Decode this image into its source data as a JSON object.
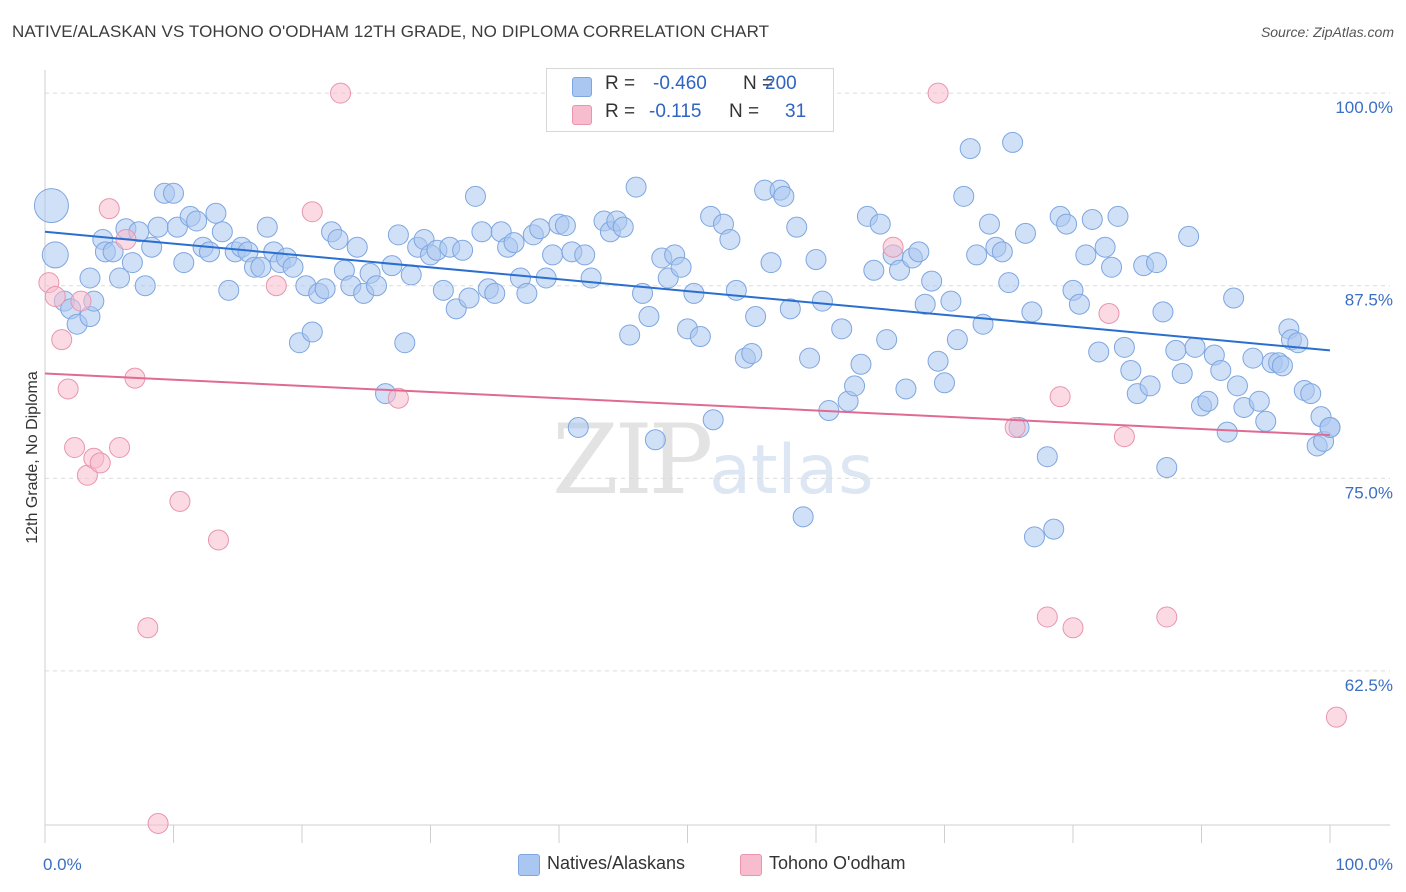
{
  "header": {
    "title": "NATIVE/ALASKAN VS TOHONO O'ODHAM 12TH GRADE, NO DIPLOMA CORRELATION CHART",
    "source": "Source: ZipAtlas.com"
  },
  "legend": {
    "rows": [
      {
        "r_label": "R =",
        "r_value": "-0.460",
        "n_label": "N =",
        "n_value": "200",
        "color": "#aac7f1"
      },
      {
        "r_label": "R =",
        "r_value": "-0.115",
        "n_label": "N =",
        "n_value": "31",
        "color": "#f7bccd"
      }
    ]
  },
  "bottom_legend": [
    {
      "label": "Natives/Alaskans",
      "color": "#aac7f1"
    },
    {
      "label": "Tohono O'odham",
      "color": "#f7bccd"
    }
  ],
  "watermark": {
    "zip": "ZIP",
    "atlas": "atlas"
  },
  "chart_data": {
    "type": "scatter",
    "title": "NATIVE/ALASKAN VS TOHONO O'ODHAM 12TH GRADE, NO DIPLOMA CORRELATION CHART",
    "xlabel": "",
    "ylabel": "12th Grade, No Diploma",
    "xlim": [
      0,
      100
    ],
    "ylim": [
      52.5,
      101.5
    ],
    "x_tick_labels": [
      "0.0%",
      "100.0%"
    ],
    "y_ticks": [
      {
        "value": 100.0,
        "label": "100.0%"
      },
      {
        "value": 87.5,
        "label": "87.5%"
      },
      {
        "value": 75.0,
        "label": "75.0%"
      },
      {
        "value": 62.5,
        "label": "62.5%"
      }
    ],
    "grid": "horizontal dashed",
    "legend_position": "top-center",
    "series": [
      {
        "name": "Natives/Alaskans",
        "color": "#aac7f1",
        "edge_color": "#7ea6e0",
        "trend_color": "#2a6fcf",
        "trend": {
          "x": [
            0,
            100
          ],
          "y": [
            91.0,
            83.3
          ]
        },
        "points": [
          [
            0.5,
            92.7,
            "L"
          ],
          [
            0.8,
            89.5,
            "M"
          ],
          [
            1.5,
            86.5
          ],
          [
            2.0,
            86.0
          ],
          [
            2.5,
            85.0
          ],
          [
            3.5,
            85.5
          ],
          [
            3.5,
            88.0
          ],
          [
            3.8,
            86.5
          ],
          [
            4.5,
            90.5
          ],
          [
            4.7,
            89.7
          ],
          [
            5.3,
            89.7
          ],
          [
            5.8,
            88.0
          ],
          [
            6.3,
            91.2
          ],
          [
            6.8,
            89.0
          ],
          [
            7.3,
            91.0
          ],
          [
            7.8,
            87.5
          ],
          [
            8.3,
            90.0
          ],
          [
            8.8,
            91.3
          ],
          [
            9.3,
            93.5
          ],
          [
            10.0,
            93.5
          ],
          [
            10.3,
            91.3
          ],
          [
            10.8,
            89.0
          ],
          [
            11.3,
            92.0
          ],
          [
            11.8,
            91.7
          ],
          [
            12.3,
            90.0
          ],
          [
            12.8,
            89.7
          ],
          [
            13.3,
            92.2
          ],
          [
            13.8,
            91.0
          ],
          [
            14.3,
            87.2
          ],
          [
            14.8,
            89.7
          ],
          [
            15.3,
            90.0
          ],
          [
            15.8,
            89.7
          ],
          [
            16.3,
            88.7
          ],
          [
            16.8,
            88.7
          ],
          [
            17.3,
            91.3
          ],
          [
            17.8,
            89.7
          ],
          [
            18.3,
            89.0
          ],
          [
            18.8,
            89.3
          ],
          [
            19.3,
            88.7
          ],
          [
            19.8,
            83.8
          ],
          [
            20.3,
            87.5
          ],
          [
            20.8,
            84.5
          ],
          [
            21.3,
            87.0
          ],
          [
            21.8,
            87.3
          ],
          [
            22.3,
            91.0
          ],
          [
            22.8,
            90.5
          ],
          [
            23.3,
            88.5
          ],
          [
            23.8,
            87.5
          ],
          [
            24.3,
            90.0
          ],
          [
            24.8,
            87.0
          ],
          [
            25.3,
            88.3
          ],
          [
            25.8,
            87.5
          ],
          [
            26.5,
            80.5
          ],
          [
            27.0,
            88.8
          ],
          [
            27.5,
            90.8
          ],
          [
            28.0,
            83.8
          ],
          [
            28.5,
            88.2
          ],
          [
            29.0,
            90.0
          ],
          [
            29.5,
            90.5
          ],
          [
            30.0,
            89.5
          ],
          [
            30.5,
            89.8
          ],
          [
            31.0,
            87.2
          ],
          [
            31.5,
            90.0
          ],
          [
            32.0,
            86.0
          ],
          [
            32.5,
            89.8
          ],
          [
            33.0,
            86.7
          ],
          [
            33.5,
            93.3
          ],
          [
            34.0,
            91.0
          ],
          [
            34.5,
            87.3
          ],
          [
            35.0,
            87.0
          ],
          [
            35.5,
            91.0
          ],
          [
            36.0,
            90.0
          ],
          [
            36.5,
            90.3
          ],
          [
            37.0,
            88.0
          ],
          [
            37.5,
            87.0
          ],
          [
            38.0,
            90.8
          ],
          [
            38.5,
            91.2
          ],
          [
            39.0,
            88.0
          ],
          [
            39.5,
            89.5
          ],
          [
            40.0,
            91.5
          ],
          [
            40.5,
            91.4
          ],
          [
            41.0,
            89.7
          ],
          [
            41.5,
            78.3
          ],
          [
            42.0,
            89.5
          ],
          [
            42.5,
            88.0
          ],
          [
            43.5,
            91.7
          ],
          [
            44.0,
            91.0
          ],
          [
            44.5,
            91.7
          ],
          [
            45.0,
            91.3
          ],
          [
            45.5,
            84.3
          ],
          [
            46.0,
            93.9
          ],
          [
            46.5,
            87.0
          ],
          [
            47.0,
            85.5
          ],
          [
            47.5,
            77.5
          ],
          [
            48.0,
            89.3
          ],
          [
            48.5,
            88.0
          ],
          [
            49.0,
            89.5
          ],
          [
            49.5,
            88.7
          ],
          [
            50.0,
            84.7
          ],
          [
            50.5,
            87.0
          ],
          [
            51.0,
            84.2
          ],
          [
            51.8,
            92.0
          ],
          [
            52.0,
            78.8
          ],
          [
            52.8,
            91.5
          ],
          [
            53.3,
            90.5
          ],
          [
            53.8,
            87.2
          ],
          [
            54.5,
            82.8
          ],
          [
            55.0,
            83.1
          ],
          [
            55.3,
            85.5
          ],
          [
            56.0,
            93.7
          ],
          [
            56.5,
            89.0
          ],
          [
            57.2,
            93.7
          ],
          [
            57.5,
            93.3
          ],
          [
            58.0,
            86.0
          ],
          [
            58.5,
            91.3
          ],
          [
            59.0,
            72.5
          ],
          [
            59.5,
            82.8
          ],
          [
            60.0,
            89.2
          ],
          [
            60.5,
            86.5
          ],
          [
            61.0,
            79.4
          ],
          [
            62.0,
            84.7
          ],
          [
            62.5,
            80.0
          ],
          [
            63.0,
            81.0
          ],
          [
            63.5,
            82.4
          ],
          [
            64.0,
            92.0
          ],
          [
            64.5,
            88.5
          ],
          [
            65.0,
            91.5
          ],
          [
            65.5,
            84.0
          ],
          [
            66.0,
            89.5
          ],
          [
            66.5,
            88.5
          ],
          [
            67.0,
            80.8
          ],
          [
            67.5,
            89.3
          ],
          [
            68.0,
            89.7
          ],
          [
            68.5,
            86.3
          ],
          [
            69.0,
            87.8
          ],
          [
            69.5,
            82.6
          ],
          [
            70.0,
            81.2
          ],
          [
            70.5,
            86.5
          ],
          [
            71.0,
            84.0
          ],
          [
            71.5,
            93.3
          ],
          [
            72.0,
            96.4
          ],
          [
            72.5,
            89.5
          ],
          [
            73.0,
            85.0
          ],
          [
            73.5,
            91.5
          ],
          [
            74.0,
            90.0
          ],
          [
            74.5,
            89.7
          ],
          [
            75.0,
            87.7
          ],
          [
            75.3,
            96.8
          ],
          [
            75.8,
            78.3
          ],
          [
            76.3,
            90.9
          ],
          [
            76.8,
            85.8
          ],
          [
            77.0,
            71.2
          ],
          [
            78.0,
            76.4
          ],
          [
            78.5,
            71.7
          ],
          [
            79.0,
            92.0
          ],
          [
            79.5,
            91.5
          ],
          [
            80.0,
            87.2
          ],
          [
            80.5,
            86.3
          ],
          [
            81.0,
            89.5
          ],
          [
            81.5,
            91.8
          ],
          [
            82.0,
            83.2
          ],
          [
            82.5,
            90.0
          ],
          [
            83.0,
            88.7
          ],
          [
            83.5,
            92.0
          ],
          [
            84.0,
            83.5
          ],
          [
            84.5,
            82.0
          ],
          [
            85.0,
            80.5
          ],
          [
            85.5,
            88.8
          ],
          [
            86.0,
            81.0
          ],
          [
            86.5,
            89.0
          ],
          [
            87.0,
            85.8
          ],
          [
            87.3,
            75.7
          ],
          [
            88.0,
            83.3
          ],
          [
            88.5,
            81.8
          ],
          [
            89.0,
            90.7
          ],
          [
            89.5,
            83.5
          ],
          [
            90.0,
            79.7
          ],
          [
            90.5,
            80.0
          ],
          [
            91.0,
            83.0
          ],
          [
            91.5,
            82.0
          ],
          [
            92.0,
            78.0
          ],
          [
            92.5,
            86.7
          ],
          [
            92.8,
            81.0
          ],
          [
            93.3,
            79.6
          ],
          [
            94.0,
            82.8
          ],
          [
            94.5,
            80.0
          ],
          [
            95.0,
            78.7
          ],
          [
            95.5,
            82.5
          ],
          [
            96.0,
            82.5
          ],
          [
            96.3,
            82.3
          ],
          [
            96.8,
            84.7
          ],
          [
            97.0,
            84.0
          ],
          [
            97.5,
            83.8
          ],
          [
            98.0,
            80.7
          ],
          [
            98.5,
            80.5
          ],
          [
            99.0,
            77.1
          ],
          [
            99.3,
            79.0
          ],
          [
            99.5,
            77.4
          ],
          [
            100.0,
            78.3
          ],
          [
            100.0,
            78.3
          ],
          [
            60.5,
            99.2
          ],
          [
            60.5,
            99.2
          ]
        ]
      },
      {
        "name": "Tohono O'odham",
        "color": "#f7bccd",
        "edge_color": "#e895ad",
        "trend_color": "#e06b92",
        "trend": {
          "x": [
            0,
            100
          ],
          "y": [
            81.8,
            77.8
          ]
        },
        "points": [
          [
            0.3,
            87.7
          ],
          [
            0.8,
            86.8
          ],
          [
            1.3,
            84.0
          ],
          [
            1.8,
            80.8
          ],
          [
            2.3,
            77.0
          ],
          [
            2.8,
            86.5
          ],
          [
            3.3,
            75.2
          ],
          [
            3.8,
            76.3
          ],
          [
            4.3,
            76.0
          ],
          [
            5.0,
            92.5
          ],
          [
            5.8,
            77.0
          ],
          [
            6.3,
            90.5
          ],
          [
            7.0,
            81.5
          ],
          [
            8.0,
            65.3
          ],
          [
            8.8,
            52.6
          ],
          [
            10.5,
            73.5
          ],
          [
            13.5,
            71.0
          ],
          [
            18.0,
            87.5
          ],
          [
            20.8,
            92.3
          ],
          [
            23.0,
            100.0
          ],
          [
            27.5,
            80.2
          ],
          [
            66.0,
            90.0
          ],
          [
            69.5,
            100.0
          ],
          [
            75.5,
            78.3
          ],
          [
            78.0,
            66.0
          ],
          [
            79.0,
            80.3
          ],
          [
            80.0,
            65.3
          ],
          [
            82.8,
            85.7
          ],
          [
            84.0,
            77.7
          ],
          [
            87.3,
            66.0
          ],
          [
            100.5,
            59.5
          ]
        ]
      }
    ]
  }
}
